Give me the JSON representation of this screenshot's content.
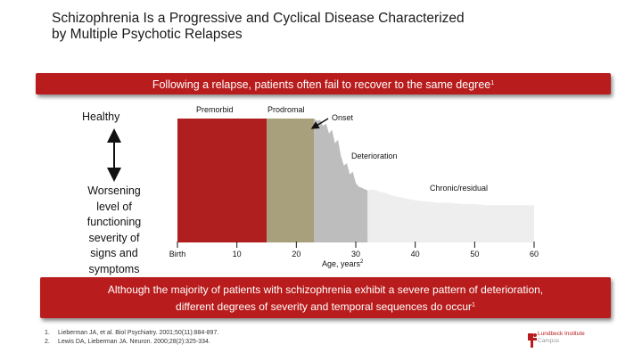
{
  "title": {
    "line1": "Schizophrenia Is a Progressive and Cyclical Disease Characterized",
    "line2": "by Multiple Psychotic Relapses"
  },
  "banner_top": {
    "text": "Following a relapse, patients often fail to recover to the same degree",
    "ref": "1"
  },
  "axis_labels": {
    "healthy": "Healthy",
    "worsening_lines": [
      "Worsening",
      "level of",
      "functioning",
      "severity of",
      "signs and",
      "symptoms"
    ],
    "x_title": "Age, years",
    "x_title_ref": "2"
  },
  "phases": {
    "premorbid": "Premorbid",
    "prodromal": "Prodromal",
    "onset": "Onset",
    "deterioration": "Deterioration",
    "chronic": "Chronic/residual"
  },
  "colors": {
    "red": "#b91c1c",
    "premorbid": "#b01f1f",
    "prodromal": "#a8a07c",
    "deterioration": "#bdbdbd",
    "chronic": "#eeeeee"
  },
  "chart_data": {
    "type": "area",
    "title": "Following a relapse, patients often fail to recover to the same degree",
    "xlabel": "Age, years",
    "ylabel": "Worsening level of functioning severity of signs and symptoms",
    "x_tick_labels": [
      "Birth",
      "10",
      "20",
      "30",
      "40",
      "50",
      "60"
    ],
    "x_ticks": [
      0,
      10,
      20,
      30,
      40,
      50,
      60
    ],
    "xlim": [
      0,
      60
    ],
    "ylim": [
      0,
      100
    ],
    "series": [
      {
        "name": "Premorbid",
        "x": [
          0,
          15
        ],
        "y": [
          100,
          100
        ]
      },
      {
        "name": "Prodromal",
        "x": [
          15,
          23
        ],
        "y": [
          100,
          100
        ]
      },
      {
        "name": "Deterioration",
        "x": [
          23,
          23.5,
          24,
          24.5,
          25,
          25.5,
          26,
          26.5,
          27,
          27.5,
          28,
          28.5,
          29,
          29.5,
          30,
          30.5,
          31,
          31.5,
          32
        ],
        "y": [
          100,
          98,
          99,
          94,
          96,
          88,
          91,
          80,
          83,
          70,
          62,
          64,
          55,
          57,
          48,
          45,
          44,
          43,
          42
        ]
      },
      {
        "name": "Chronic/residual",
        "x": [
          32,
          33,
          34,
          35,
          36,
          37,
          38,
          40,
          42,
          44,
          46,
          48,
          50,
          52,
          54,
          56,
          58,
          60
        ],
        "y": [
          42,
          43,
          41,
          40,
          38,
          37,
          36,
          34,
          33,
          32,
          32,
          31,
          31,
          30,
          30,
          30,
          30,
          30
        ]
      }
    ]
  },
  "banner_bottom": {
    "line1": "Although the majority of patients with schizophrenia exhibit a severe pattern of deterioration,",
    "line2": "different degrees of severity and temporal sequences do occur",
    "ref": "1"
  },
  "references": [
    {
      "num": "1.",
      "text": "Lieberman JA, et al. Biol Psychiatry. 2001;50(11):884-897."
    },
    {
      "num": "2.",
      "text": "Lewis DA, Lieberman JA. Neuron. 2000;28(2):325-334."
    }
  ],
  "logo": {
    "line1": "Lundbeck Institute",
    "line2": "Campus"
  }
}
